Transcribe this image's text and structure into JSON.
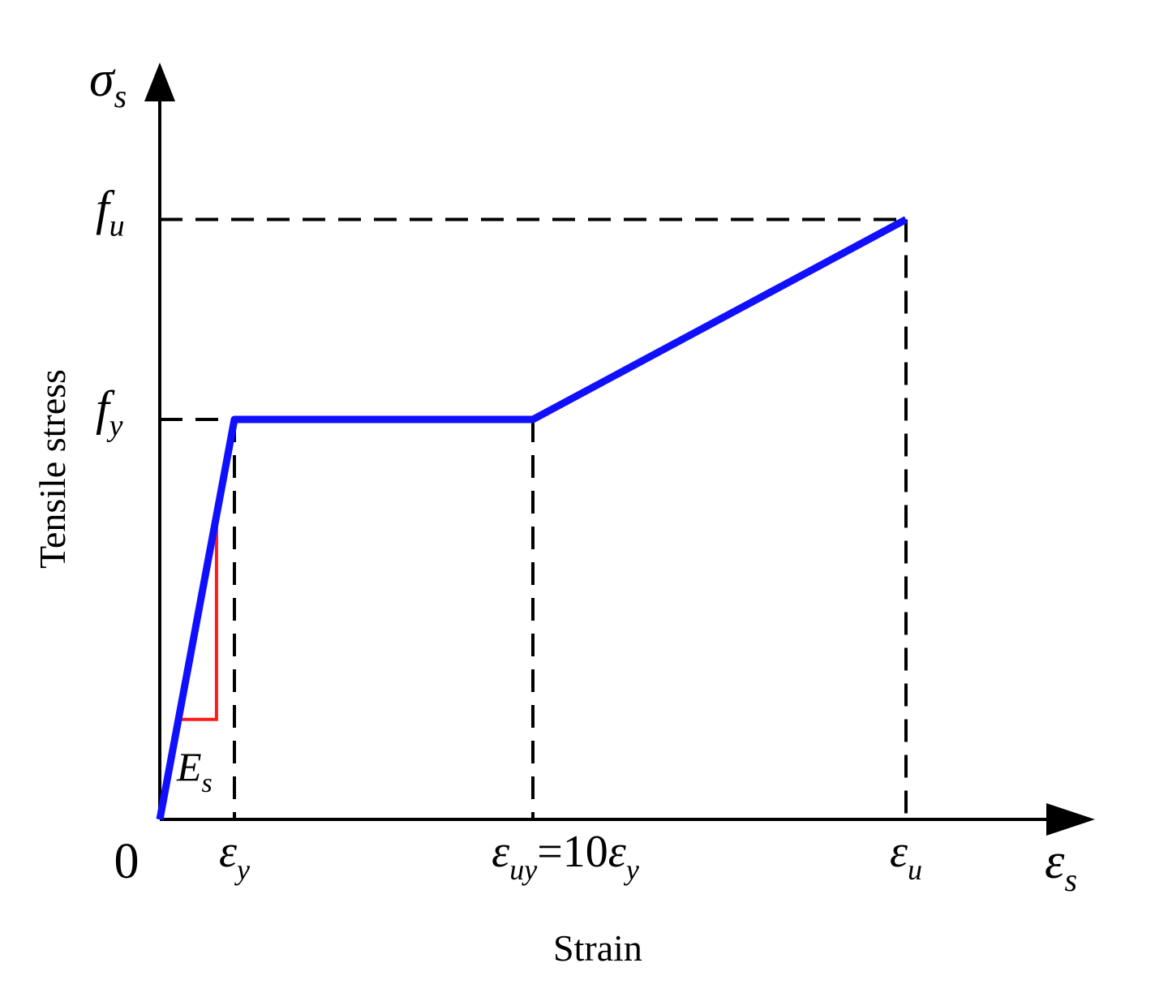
{
  "chart_data": {
    "type": "line",
    "xlabel": "Strain",
    "ylabel": "Tensile stress",
    "x_axis_symbol": "ε",
    "x_axis_symbol_sub": "s",
    "y_axis_symbol": "σ",
    "y_axis_symbol_sub": "s",
    "origin_label": "0",
    "x": [
      0,
      1,
      5,
      10
    ],
    "y": [
      0,
      1,
      1,
      1.5
    ],
    "x_ticks": [
      {
        "value": 1,
        "symbol": "ε",
        "sub": "y",
        "suffix": "",
        "suffix_symbol": "",
        "suffix_sub": ""
      },
      {
        "value": 5,
        "symbol": "ε",
        "sub": "uy",
        "suffix": "=10",
        "suffix_symbol": "ε",
        "suffix_sub": "y"
      },
      {
        "value": 10,
        "symbol": "ε",
        "sub": "u",
        "suffix": "",
        "suffix_symbol": "",
        "suffix_sub": ""
      }
    ],
    "y_ticks": [
      {
        "value": 1,
        "symbol": "f",
        "sub": "y"
      },
      {
        "value": 1.5,
        "symbol": "f",
        "sub": "u"
      }
    ],
    "annotation": {
      "symbol": "E",
      "sub": "s"
    },
    "xlim": [
      0,
      12.3
    ],
    "ylim": [
      0,
      1.98
    ],
    "grid": false,
    "colors": {
      "curve": "#1010ff",
      "slope_triangle": "#ff1a1a",
      "axes": "#000000",
      "guides": "#000000"
    }
  }
}
